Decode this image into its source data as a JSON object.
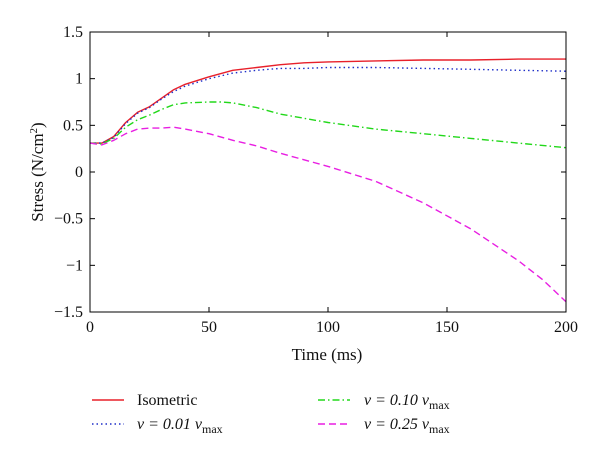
{
  "chart_data": {
    "type": "line",
    "xlabel": "Time (ms)",
    "ylabel_main": "Stress (N/cm",
    "ylabel_sup": "2",
    "ylabel_end": ")",
    "xlim": [
      0,
      200
    ],
    "ylim": [
      -1.5,
      1.5
    ],
    "xticks": [
      0,
      50,
      100,
      150,
      200
    ],
    "yticks": [
      1.5,
      1,
      0.5,
      0,
      -0.5,
      -1,
      -1.5
    ],
    "xtick_labels": [
      "0",
      "50",
      "100",
      "150",
      "200"
    ],
    "ytick_labels": [
      "1.5",
      "1",
      "0.5",
      "0",
      "−0.5",
      "−1",
      "−1.5"
    ],
    "grid": false,
    "legend_placement": "below",
    "series": [
      {
        "name": "Isometric",
        "color": "#e8202a",
        "dash": "solid",
        "x": [
          0,
          5,
          10,
          15,
          20,
          25,
          30,
          35,
          40,
          50,
          60,
          70,
          80,
          90,
          100,
          120,
          140,
          160,
          180,
          200
        ],
        "y": [
          0.31,
          0.31,
          0.38,
          0.53,
          0.64,
          0.7,
          0.79,
          0.88,
          0.94,
          1.02,
          1.09,
          1.12,
          1.15,
          1.17,
          1.18,
          1.19,
          1.2,
          1.2,
          1.21,
          1.21
        ]
      },
      {
        "name_prefix": "ν = 0.01 ν",
        "name_sub": "max",
        "color": "#1f2fc8",
        "dash": "dotted",
        "x": [
          0,
          5,
          10,
          15,
          20,
          25,
          30,
          35,
          40,
          50,
          60,
          70,
          80,
          90,
          100,
          120,
          140,
          160,
          180,
          200
        ],
        "y": [
          0.31,
          0.31,
          0.37,
          0.52,
          0.63,
          0.69,
          0.78,
          0.86,
          0.92,
          1.0,
          1.06,
          1.09,
          1.11,
          1.11,
          1.12,
          1.12,
          1.11,
          1.1,
          1.09,
          1.08
        ]
      },
      {
        "name_prefix": "ν = 0.10 ν",
        "name_sub": "max",
        "color": "#22d81a",
        "dash": "dashdot",
        "x": [
          0,
          5,
          10,
          15,
          20,
          25,
          30,
          35,
          40,
          50,
          55,
          60,
          70,
          80,
          100,
          120,
          140,
          160,
          180,
          200
        ],
        "y": [
          0.31,
          0.3,
          0.36,
          0.48,
          0.56,
          0.61,
          0.67,
          0.72,
          0.74,
          0.75,
          0.75,
          0.74,
          0.69,
          0.62,
          0.53,
          0.46,
          0.41,
          0.36,
          0.31,
          0.26
        ]
      },
      {
        "name_prefix": "ν = 0.25 ν",
        "name_sub": "max",
        "color": "#e81fe2",
        "dash": "dashed",
        "x": [
          0,
          5,
          10,
          15,
          20,
          25,
          30,
          35,
          40,
          50,
          60,
          70,
          80,
          100,
          120,
          140,
          160,
          180,
          190,
          200
        ],
        "y": [
          0.31,
          0.29,
          0.34,
          0.41,
          0.46,
          0.47,
          0.47,
          0.48,
          0.46,
          0.41,
          0.34,
          0.28,
          0.2,
          0.06,
          -0.1,
          -0.33,
          -0.61,
          -0.95,
          -1.15,
          -1.39
        ]
      }
    ]
  }
}
